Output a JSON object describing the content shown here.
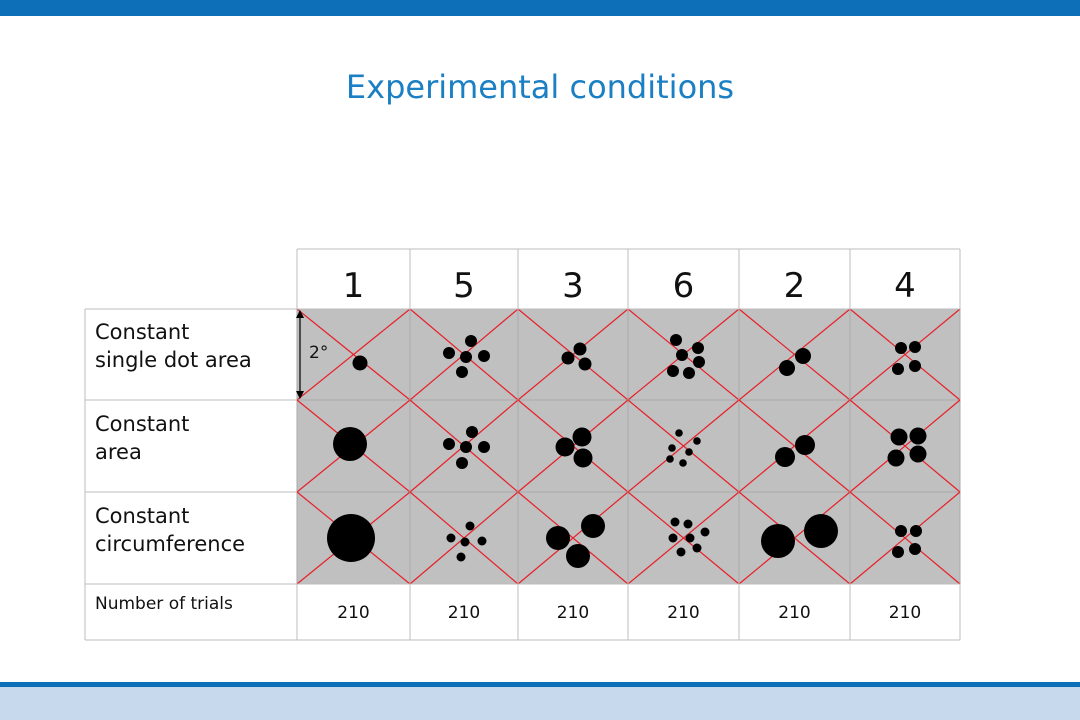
{
  "title": "Experimental conditions",
  "columns": [
    "1",
    "5",
    "3",
    "6",
    "2",
    "4"
  ],
  "rows": [
    {
      "label": "Constant\nsingle dot area"
    },
    {
      "label": "Constant\narea"
    },
    {
      "label": "Constant\ncircumference"
    }
  ],
  "trials_label": "Number of trials",
  "trials": [
    "210",
    "210",
    "210",
    "210",
    "210",
    "210"
  ],
  "angle_label": "2°",
  "colors": {
    "accent": "#0d6fb8",
    "title": "#1b7fc4",
    "cell_bg": "#c0c0c0",
    "cross": "#e8202a",
    "dot": "#000000"
  }
}
